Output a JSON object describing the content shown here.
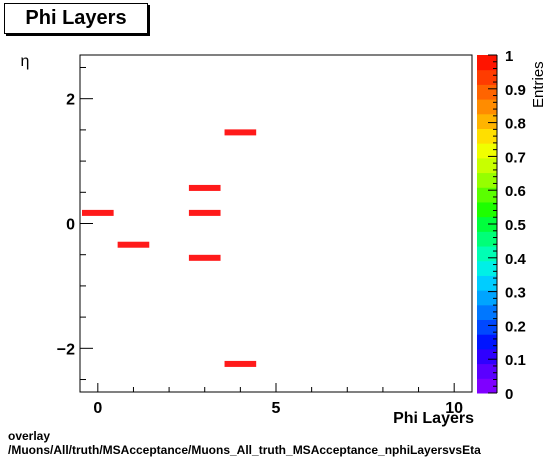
{
  "title": "Phi Layers",
  "footer": {
    "line1": "overlay",
    "line2": "/Muons/All/truth/MSAcceptance/Muons_All_truth_MSAcceptance_nphiLayersvsEta"
  },
  "colors": {
    "bar": "#ff1a1a",
    "palette": [
      "#7f00ff",
      "#5a00ff",
      "#2f00ff",
      "#0015ff",
      "#0048ff",
      "#0077ff",
      "#00a4ff",
      "#00cdff",
      "#00f0e6",
      "#00ffb4",
      "#00ff78",
      "#00ff3c",
      "#1eff00",
      "#5aff00",
      "#96ff00",
      "#c8ff00",
      "#f0ff00",
      "#ffdf00",
      "#ffb400",
      "#ff8c00",
      "#ff6400",
      "#ff3c00",
      "#ff1400"
    ]
  },
  "chart_data": {
    "type": "heatmap",
    "title": "Phi Layers",
    "xlabel": "Phi Layers",
    "ylabel": "η",
    "zlabel": "Entries",
    "xlim": [
      -0.5,
      10.5
    ],
    "ylim": [
      -2.7,
      2.7
    ],
    "zlim": [
      0,
      1
    ],
    "x_ticks": [
      0,
      5,
      10
    ],
    "y_ticks": [
      -2,
      0,
      2
    ],
    "z_ticks": [
      "0",
      "0.1",
      "0.2",
      "0.3",
      "0.4",
      "0.5",
      "0.6",
      "0.7",
      "0.8",
      "0.9",
      "1"
    ],
    "x_tick_labels": [
      "0",
      "5",
      "10"
    ],
    "y_tick_labels": [
      "−2",
      "0",
      "2"
    ],
    "cells": [
      {
        "x": 0,
        "y": 0.17,
        "value": 1
      },
      {
        "x": 1,
        "y": -0.34,
        "value": 1
      },
      {
        "x": 3,
        "y": 0.57,
        "value": 1
      },
      {
        "x": 3,
        "y": 0.17,
        "value": 1
      },
      {
        "x": 3,
        "y": -0.55,
        "value": 1
      },
      {
        "x": 4,
        "y": 1.46,
        "value": 1
      },
      {
        "x": 4,
        "y": -2.25,
        "value": 1
      }
    ]
  }
}
